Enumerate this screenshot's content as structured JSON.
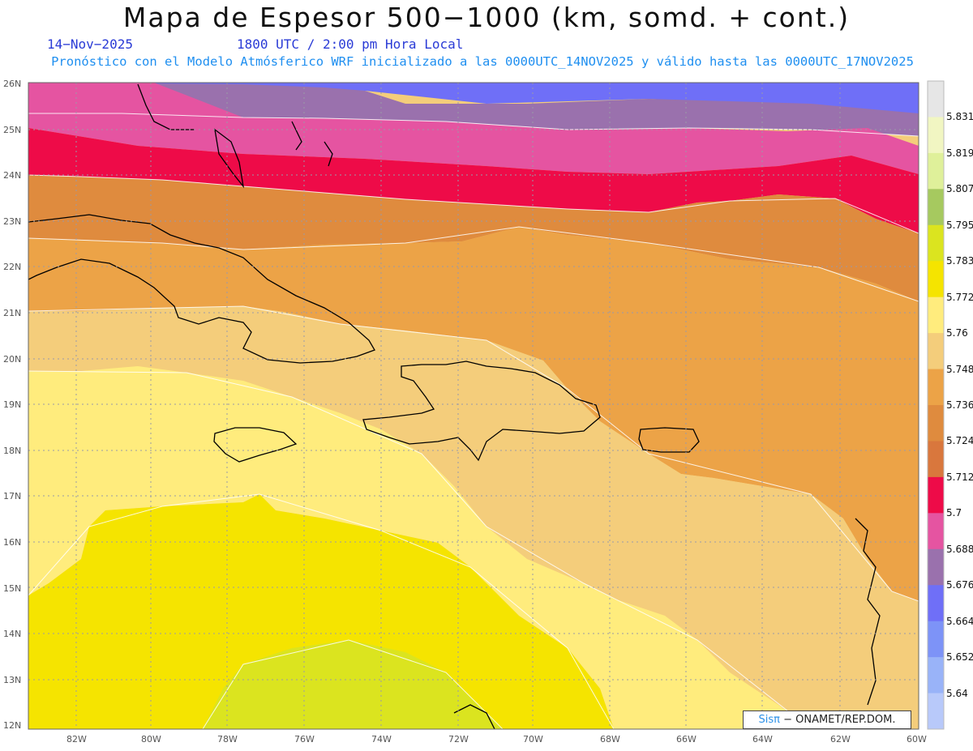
{
  "header": {
    "title": "Mapa de Espesor 500−1000 (km, somd. + cont.)",
    "date": "14−Nov−2025",
    "time": "1800 UTC / 2:00 pm Hora Local",
    "info": "Pronóstico con el Modelo Atmósferico WRF inicializado a las 0000UTC_14NOV2025 y válido hasta las  0000UTC_17NOV2025"
  },
  "map": {
    "lat_labels": [
      "26N",
      "25N",
      "24N",
      "23N",
      "22N",
      "21N",
      "20N",
      "19N",
      "18N",
      "17N",
      "16N",
      "15N",
      "14N",
      "13N",
      "12N"
    ],
    "lon_labels": [
      "82W",
      "80W",
      "78W",
      "76W",
      "74W",
      "72W",
      "70W",
      "68W",
      "66W",
      "64W",
      "62W",
      "60W"
    ]
  },
  "colorbar": {
    "labels": [
      "5.831",
      "5.819",
      "5.807",
      "5.795",
      "5.783",
      "5.772",
      "5.76",
      "5.748",
      "5.736",
      "5.724",
      "5.712",
      "5.7",
      "5.688",
      "5.676",
      "5.664",
      "5.652",
      "5.64"
    ],
    "colors": [
      "#e6e6e6",
      "#f1f6c2",
      "#dff09a",
      "#a6c95f",
      "#dbe41f",
      "#f5e400",
      "#ffec7d",
      "#f4cd7b",
      "#eca347",
      "#df8b3e",
      "#d9773d",
      "#ee0b48",
      "#e554a1",
      "#9a71ad",
      "#6f6ff7",
      "#7d93f7",
      "#99b3f8",
      "#b8c9fa"
    ]
  },
  "credit": {
    "brand": "Sisπ",
    "org": "− ONAMET/REP.DOM."
  }
}
